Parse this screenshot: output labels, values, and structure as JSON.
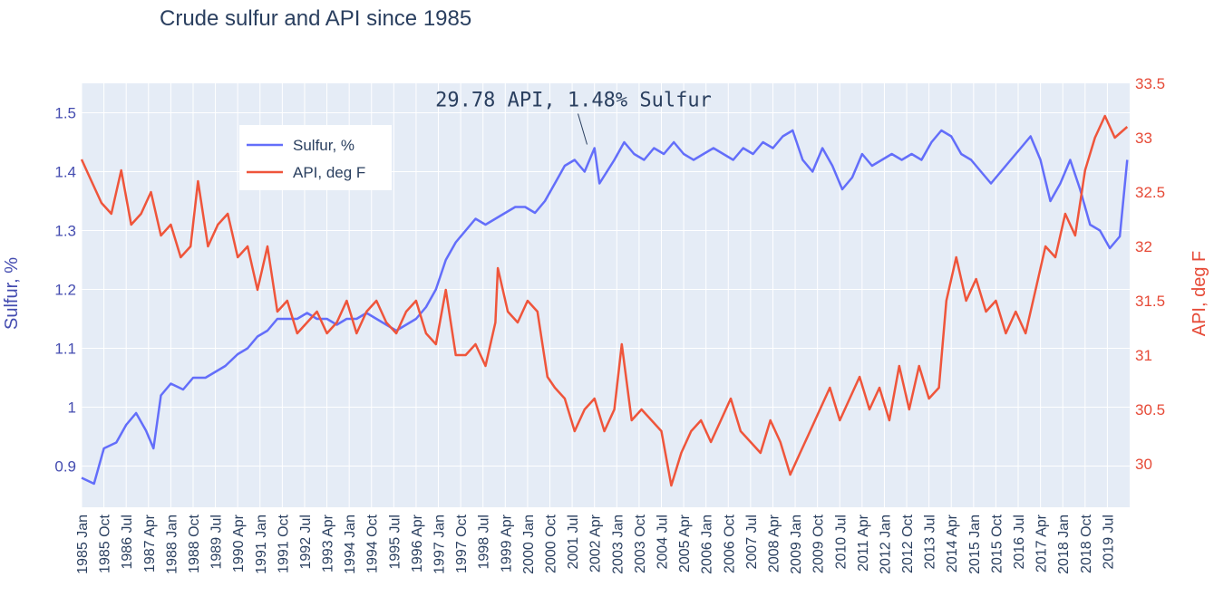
{
  "chart_data": {
    "type": "line",
    "title": "Crude sulfur and API since 1985",
    "xlabel": "",
    "ylabel_left": "Sulfur, %",
    "ylabel_right": "API, deg F",
    "x_range": [
      "1985-01",
      "2020-04"
    ],
    "ylim_left": [
      0.83,
      1.55
    ],
    "ylim_right": [
      29.6,
      33.5
    ],
    "y_ticks_left": [
      "0.9",
      "1",
      "1.1",
      "1.2",
      "1.3",
      "1.4",
      "1.5"
    ],
    "y_ticks_right": [
      "30",
      "30.5",
      "31",
      "31.5",
      "32",
      "32.5",
      "33",
      "33.5"
    ],
    "x_ticks": [
      "1985 Jan",
      "1985 Oct",
      "1986 Jul",
      "1987 Apr",
      "1988 Jan",
      "1988 Oct",
      "1989 Jul",
      "1990 Apr",
      "1991 Jan",
      "1991 Oct",
      "1992 Jul",
      "1993 Apr",
      "1994 Jan",
      "1994 Oct",
      "1995 Jul",
      "1996 Apr",
      "1997 Jan",
      "1997 Oct",
      "1998 Jul",
      "1999 Apr",
      "2000 Jan",
      "2000 Oct",
      "2001 Jul",
      "2002 Apr",
      "2003 Jan",
      "2003 Oct",
      "2004 Jul",
      "2005 Apr",
      "2006 Jan",
      "2006 Oct",
      "2007 Jul",
      "2008 Apr",
      "2009 Jan",
      "2009 Oct",
      "2010 Jul",
      "2011 Apr",
      "2012 Jan",
      "2012 Oct",
      "2013 Jul",
      "2014 Apr",
      "2015 Jan",
      "2015 Oct",
      "2016 Jul",
      "2017 Apr",
      "2018 Jan",
      "2018 Oct",
      "2019 Jul"
    ],
    "grid": true,
    "legend_position": "upper-left",
    "series": [
      {
        "name": "Sulfur, %",
        "axis": "left",
        "color": "#636efa",
        "points": [
          [
            "1985-01",
            0.88
          ],
          [
            "1985-06",
            0.87
          ],
          [
            "1985-10",
            0.93
          ],
          [
            "1986-03",
            0.94
          ],
          [
            "1986-07",
            0.97
          ],
          [
            "1986-11",
            0.99
          ],
          [
            "1987-03",
            0.96
          ],
          [
            "1987-06",
            0.93
          ],
          [
            "1987-09",
            1.02
          ],
          [
            "1988-01",
            1.04
          ],
          [
            "1988-06",
            1.03
          ],
          [
            "1988-10",
            1.05
          ],
          [
            "1989-03",
            1.05
          ],
          [
            "1989-07",
            1.06
          ],
          [
            "1989-11",
            1.07
          ],
          [
            "1990-04",
            1.09
          ],
          [
            "1990-08",
            1.1
          ],
          [
            "1990-12",
            1.12
          ],
          [
            "1991-04",
            1.13
          ],
          [
            "1991-08",
            1.15
          ],
          [
            "1991-12",
            1.15
          ],
          [
            "1992-04",
            1.15
          ],
          [
            "1992-08",
            1.16
          ],
          [
            "1992-12",
            1.15
          ],
          [
            "1993-04",
            1.15
          ],
          [
            "1993-08",
            1.14
          ],
          [
            "1993-12",
            1.15
          ],
          [
            "1994-04",
            1.15
          ],
          [
            "1994-08",
            1.16
          ],
          [
            "1994-12",
            1.15
          ],
          [
            "1995-04",
            1.14
          ],
          [
            "1995-08",
            1.13
          ],
          [
            "1995-12",
            1.14
          ],
          [
            "1996-04",
            1.15
          ],
          [
            "1996-08",
            1.17
          ],
          [
            "1996-12",
            1.2
          ],
          [
            "1997-04",
            1.25
          ],
          [
            "1997-08",
            1.28
          ],
          [
            "1997-12",
            1.3
          ],
          [
            "1998-04",
            1.32
          ],
          [
            "1998-08",
            1.31
          ],
          [
            "1998-12",
            1.32
          ],
          [
            "1999-04",
            1.33
          ],
          [
            "1999-08",
            1.34
          ],
          [
            "1999-12",
            1.34
          ],
          [
            "2000-04",
            1.33
          ],
          [
            "2000-08",
            1.35
          ],
          [
            "2000-12",
            1.38
          ],
          [
            "2001-04",
            1.41
          ],
          [
            "2001-08",
            1.42
          ],
          [
            "2001-12",
            1.4
          ],
          [
            "2002-04",
            1.44
          ],
          [
            "2002-06",
            1.38
          ],
          [
            "2002-12",
            1.42
          ],
          [
            "2003-04",
            1.45
          ],
          [
            "2003-08",
            1.43
          ],
          [
            "2003-12",
            1.42
          ],
          [
            "2004-04",
            1.44
          ],
          [
            "2004-08",
            1.43
          ],
          [
            "2004-12",
            1.45
          ],
          [
            "2005-04",
            1.43
          ],
          [
            "2005-08",
            1.42
          ],
          [
            "2005-12",
            1.43
          ],
          [
            "2006-04",
            1.44
          ],
          [
            "2006-08",
            1.43
          ],
          [
            "2006-12",
            1.42
          ],
          [
            "2007-04",
            1.44
          ],
          [
            "2007-08",
            1.43
          ],
          [
            "2007-12",
            1.45
          ],
          [
            "2008-04",
            1.44
          ],
          [
            "2008-08",
            1.46
          ],
          [
            "2008-12",
            1.47
          ],
          [
            "2009-04",
            1.42
          ],
          [
            "2009-08",
            1.4
          ],
          [
            "2009-12",
            1.44
          ],
          [
            "2010-04",
            1.41
          ],
          [
            "2010-08",
            1.37
          ],
          [
            "2010-12",
            1.39
          ],
          [
            "2011-04",
            1.43
          ],
          [
            "2011-08",
            1.41
          ],
          [
            "2011-12",
            1.42
          ],
          [
            "2012-04",
            1.43
          ],
          [
            "2012-08",
            1.42
          ],
          [
            "2012-12",
            1.43
          ],
          [
            "2013-04",
            1.42
          ],
          [
            "2013-08",
            1.45
          ],
          [
            "2013-12",
            1.47
          ],
          [
            "2014-04",
            1.46
          ],
          [
            "2014-08",
            1.43
          ],
          [
            "2014-12",
            1.42
          ],
          [
            "2015-04",
            1.4
          ],
          [
            "2015-08",
            1.38
          ],
          [
            "2015-12",
            1.4
          ],
          [
            "2016-04",
            1.42
          ],
          [
            "2016-08",
            1.44
          ],
          [
            "2016-12",
            1.46
          ],
          [
            "2017-04",
            1.42
          ],
          [
            "2017-08",
            1.35
          ],
          [
            "2017-12",
            1.38
          ],
          [
            "2018-04",
            1.42
          ],
          [
            "2018-08",
            1.37
          ],
          [
            "2018-12",
            1.31
          ],
          [
            "2019-04",
            1.3
          ],
          [
            "2019-08",
            1.27
          ],
          [
            "2019-12",
            1.29
          ],
          [
            "2020-03",
            1.42
          ]
        ]
      },
      {
        "name": "API, deg F",
        "axis": "right",
        "color": "#ef553b",
        "points": [
          [
            "1985-01",
            32.8
          ],
          [
            "1985-05",
            32.6
          ],
          [
            "1985-09",
            32.4
          ],
          [
            "1986-01",
            32.3
          ],
          [
            "1986-05",
            32.7
          ],
          [
            "1986-09",
            32.2
          ],
          [
            "1987-01",
            32.3
          ],
          [
            "1987-05",
            32.5
          ],
          [
            "1987-09",
            32.1
          ],
          [
            "1988-01",
            32.2
          ],
          [
            "1988-05",
            31.9
          ],
          [
            "1988-09",
            32.0
          ],
          [
            "1988-12",
            32.6
          ],
          [
            "1989-04",
            32.0
          ],
          [
            "1989-08",
            32.2
          ],
          [
            "1989-12",
            32.3
          ],
          [
            "1990-04",
            31.9
          ],
          [
            "1990-08",
            32.0
          ],
          [
            "1990-12",
            31.6
          ],
          [
            "1991-04",
            32.0
          ],
          [
            "1991-08",
            31.4
          ],
          [
            "1991-12",
            31.5
          ],
          [
            "1992-04",
            31.2
          ],
          [
            "1992-08",
            31.3
          ],
          [
            "1992-12",
            31.4
          ],
          [
            "1993-04",
            31.2
          ],
          [
            "1993-08",
            31.3
          ],
          [
            "1993-12",
            31.5
          ],
          [
            "1994-04",
            31.2
          ],
          [
            "1994-08",
            31.4
          ],
          [
            "1994-12",
            31.5
          ],
          [
            "1995-04",
            31.3
          ],
          [
            "1995-08",
            31.2
          ],
          [
            "1995-12",
            31.4
          ],
          [
            "1996-04",
            31.5
          ],
          [
            "1996-08",
            31.2
          ],
          [
            "1996-12",
            31.1
          ],
          [
            "1997-04",
            31.6
          ],
          [
            "1997-08",
            31.0
          ],
          [
            "1997-12",
            31.0
          ],
          [
            "1998-04",
            31.1
          ],
          [
            "1998-08",
            30.9
          ],
          [
            "1998-12",
            31.3
          ],
          [
            "1999-01",
            31.8
          ],
          [
            "1999-05",
            31.4
          ],
          [
            "1999-09",
            31.3
          ],
          [
            "2000-01",
            31.5
          ],
          [
            "2000-05",
            31.4
          ],
          [
            "2000-09",
            30.8
          ],
          [
            "2000-12",
            30.7
          ],
          [
            "2001-04",
            30.6
          ],
          [
            "2001-08",
            30.3
          ],
          [
            "2001-12",
            30.5
          ],
          [
            "2002-04",
            30.6
          ],
          [
            "2002-08",
            30.3
          ],
          [
            "2002-12",
            30.5
          ],
          [
            "2003-03",
            31.1
          ],
          [
            "2003-07",
            30.4
          ],
          [
            "2003-11",
            30.5
          ],
          [
            "2004-03",
            30.4
          ],
          [
            "2004-07",
            30.3
          ],
          [
            "2004-11",
            29.8
          ],
          [
            "2005-03",
            30.1
          ],
          [
            "2005-07",
            30.3
          ],
          [
            "2005-11",
            30.4
          ],
          [
            "2006-03",
            30.2
          ],
          [
            "2006-07",
            30.4
          ],
          [
            "2006-11",
            30.6
          ],
          [
            "2007-03",
            30.3
          ],
          [
            "2007-07",
            30.2
          ],
          [
            "2007-11",
            30.1
          ],
          [
            "2008-03",
            30.4
          ],
          [
            "2008-07",
            30.2
          ],
          [
            "2008-11",
            29.9
          ],
          [
            "2009-03",
            30.1
          ],
          [
            "2009-07",
            30.3
          ],
          [
            "2009-11",
            30.5
          ],
          [
            "2010-03",
            30.7
          ],
          [
            "2010-07",
            30.4
          ],
          [
            "2010-11",
            30.6
          ],
          [
            "2011-03",
            30.8
          ],
          [
            "2011-07",
            30.5
          ],
          [
            "2011-11",
            30.7
          ],
          [
            "2012-03",
            30.4
          ],
          [
            "2012-07",
            30.9
          ],
          [
            "2012-11",
            30.5
          ],
          [
            "2013-03",
            30.9
          ],
          [
            "2013-07",
            30.6
          ],
          [
            "2013-11",
            30.7
          ],
          [
            "2014-02",
            31.5
          ],
          [
            "2014-06",
            31.9
          ],
          [
            "2014-10",
            31.5
          ],
          [
            "2015-02",
            31.7
          ],
          [
            "2015-06",
            31.4
          ],
          [
            "2015-10",
            31.5
          ],
          [
            "2016-02",
            31.2
          ],
          [
            "2016-06",
            31.4
          ],
          [
            "2016-10",
            31.2
          ],
          [
            "2017-02",
            31.6
          ],
          [
            "2017-06",
            32.0
          ],
          [
            "2017-10",
            31.9
          ],
          [
            "2018-02",
            32.3
          ],
          [
            "2018-06",
            32.1
          ],
          [
            "2018-10",
            32.7
          ],
          [
            "2019-02",
            33.0
          ],
          [
            "2019-06",
            33.2
          ],
          [
            "2019-10",
            33.0
          ],
          [
            "2020-03",
            33.1
          ]
        ]
      }
    ],
    "annotations": [
      {
        "text": "29.78 API, 1.48% Sulfur",
        "x": "2002-01",
        "y": 1.44,
        "axis": "left"
      }
    ]
  }
}
